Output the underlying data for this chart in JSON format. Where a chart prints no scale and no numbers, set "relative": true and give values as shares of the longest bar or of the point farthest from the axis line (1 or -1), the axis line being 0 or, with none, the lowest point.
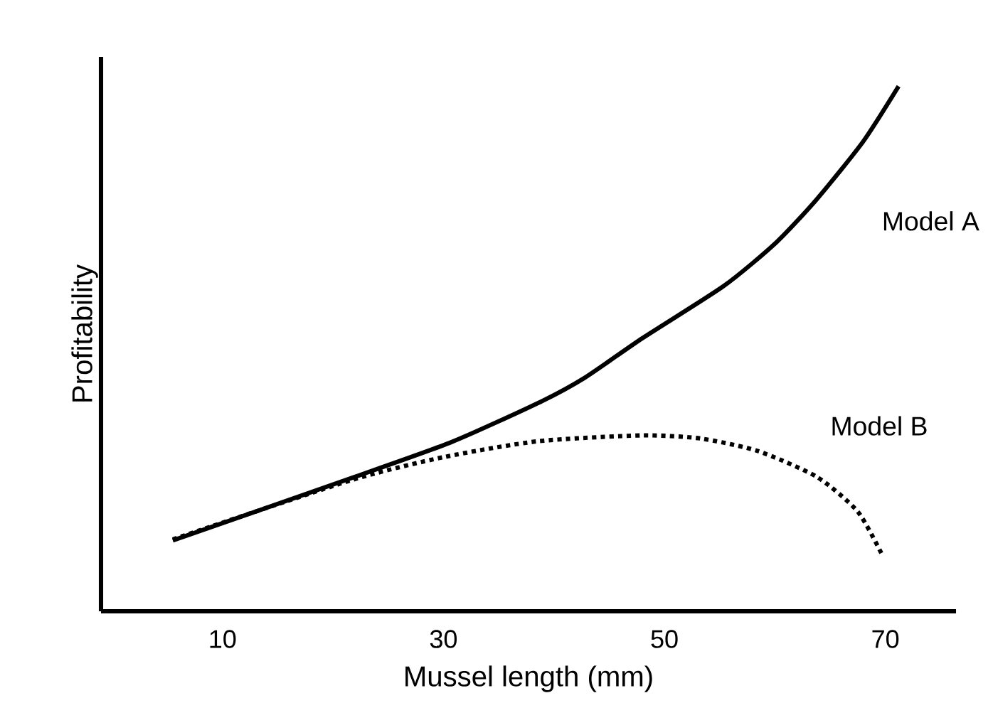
{
  "chart_data": {
    "type": "line",
    "xlabel": "Mussel length (mm)",
    "ylabel": "Profitability",
    "relative": true,
    "xlim": [
      -1,
      76.4
    ],
    "xticks": [
      10,
      30,
      50,
      70
    ],
    "grid": false,
    "legend": false,
    "marker": "none",
    "series": [
      {
        "name": "Model A",
        "color": "#000000",
        "line_style": "solid",
        "x": [
          5.5,
          13.3,
          21.7,
          30.7,
          38.6,
          42.8,
          48.0,
          55.4,
          60.1,
          63.8,
          68.0,
          71.2
        ],
        "values": [
          0.135,
          0.192,
          0.254,
          0.322,
          0.397,
          0.445,
          0.52,
          0.62,
          0.702,
          0.785,
          0.895,
          1.0
        ]
      },
      {
        "name": "Model B",
        "color": "#000000",
        "line_style": "dotted",
        "x": [
          5.5,
          21.7,
          30.1,
          38.6,
          48.0,
          53.3,
          58.5,
          63.8,
          67.5,
          69.8
        ],
        "values": [
          0.137,
          0.25,
          0.294,
          0.324,
          0.335,
          0.329,
          0.305,
          0.256,
          0.19,
          0.104
        ]
      }
    ]
  }
}
